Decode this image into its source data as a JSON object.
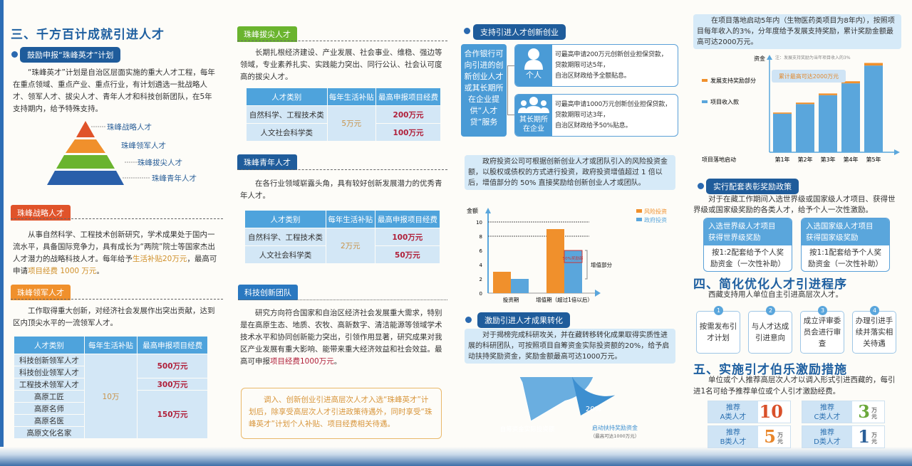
{
  "col1": {
    "title": "三、千方百计成就引进人才",
    "pill": "鼓励申报“珠峰英才”计划",
    "intro": "“珠峰英才”计划是自治区层面实施的重大人才工程，每年在重点领域、重点产业、重点行业，有计划遴选一批战略人才、领军人才、拔尖人才、青年人才和科技创新团队，在5年支持期内，给予特殊支持。",
    "pyramid": [
      "珠峰战略人才",
      "珠峰领军人才",
      "珠峰拔尖人才",
      "珠峰青年人才"
    ],
    "strategic": {
      "tag": "珠峰战略人才",
      "text": "从事自然科学、工程技术创新研究，学术成果处于国内一流水平，具备国际竞争力，具有成长为“两院”院士等国家杰出人才潜力的战略科技人才。每年给予",
      "hl1": "生活补贴20万元",
      "mid": "，最高可申请",
      "hl2": "项目经费 1000 万元",
      "end": "。"
    },
    "leading": {
      "tag": "珠峰领军人才",
      "text": "工作取得重大创新，对经济社会发展作出突出贡献，达到区内顶尖水平的一流领军人才。",
      "headers": [
        "人才类别",
        "每年生活补贴",
        "最高申报项目经费"
      ],
      "rows": [
        "科技创新领军人才",
        "科技创业领军人才",
        "工程技术领军人才",
        "高原工匠",
        "高原名师",
        "高原名医",
        "高原文化名家"
      ],
      "subsidy": "10万",
      "funds": [
        "500万元",
        "300万元",
        "150万元"
      ]
    }
  },
  "col2": {
    "top": {
      "tag": "珠峰拔尖人才",
      "text": "长期扎根经济建设、产业发展、社会事业、维稳、强边等领域，专业素养扎实、实践能力突出、同行公认、社会认可度高的拔尖人才。",
      "headers": [
        "人才类别",
        "每年生活补贴",
        "最高申报项目经费"
      ],
      "rows": [
        "自然科学、工程技术类",
        "人文社会科学类"
      ],
      "subsidy": "5万元",
      "funds": [
        "200万元",
        "100万元"
      ]
    },
    "youth": {
      "tag": "珠峰青年人才",
      "text": "在各行业领域崭露头角，具有较好创新发展潜力的优秀青年人才。",
      "headers": [
        "人才类别",
        "每年生活补贴",
        "最高申报项目经费"
      ],
      "rows": [
        "自然科学、工程技术类",
        "人文社会科学类"
      ],
      "subsidy": "2万元",
      "funds": [
        "100万元",
        "50万元"
      ]
    },
    "team": {
      "tag": "科技创新团队",
      "text": "研究方向符合国家和自治区经济社会发展重大需求，特别是在高原生态、地质、农牧、高新数字、清洁能源等领域学术技术水平和协同创新能力突出，引领作用显著，研究成果对我区产业发展有重大影响、能带来重大经济效益和社会效益。最高可申报",
      "hl": "项目经费1000万元",
      "end": "。"
    },
    "note": "调入、创新创业引进高层次人才入选“珠峰英才”计划后，除享受高层次人才引进政策待遇外，同时享受“珠峰英才”计划个人补贴、项目经费相关待遇。"
  },
  "col3": {
    "pill1": "支持引进人才创新创业",
    "loan_box": "合作银行可向引进的创新创业人才或其长期所在企业提供“人才贷”服务",
    "cards": [
      {
        "who": "个人",
        "lines": [
          "可最高申请200万元创新创业担保贷款，",
          "贷款期限可达5年，",
          "自治区财政给予全额贴息。"
        ]
      },
      {
        "who": "其长期所在企业",
        "lines": [
          "可最高申请1000万元创新创业担保贷款，",
          "贷款期限可达3年，",
          "自治区财政给予50%贴息。"
        ]
      }
    ],
    "invest_text": "政府投资公司可根据创新创业人才或团队引入的风险投资金额，以股权或债权的方式进行投资，政府投资增值超过 1 倍以后，增值部分的 50% 直接奖励给创新创业人才或团队。",
    "pill2": "激励引进人才成果转化",
    "transfer_text": "对于揭榜完成科研攻关，并在藏转移转化成果取得实质性进展的科研团队，可按照项目自筹资金实际投资额的20%，给予启动扶持奖励资金，奖励金额最高可达1000万元。"
  },
  "col4": {
    "dev_text": "在项目落地启动5年内（生物医药类项目为8年内），按照项目每年收入的3%，分年度给予发展支持奖励，累计奖励金额最高可达2000万元。",
    "pill3": "实行配套表彰奖励政策",
    "award_text": "对于在藏工作期间入选世界级或国家级人才项目、获得世界级或国家级奖励的各类人才，给予个人一次性激励。",
    "award_cards": [
      {
        "items": [
          "入选世界级人才项目",
          "获得世界级奖励"
        ],
        "desc": "按1:2配套给予个人奖励资金（一次性补助）"
      },
      {
        "items": [
          "入选国家级人才项目",
          "获得国家级奖励"
        ],
        "desc": "按1:1配套给予个人奖励资金（一次性补助）"
      }
    ],
    "h4": "四、简化优化人才引进程序",
    "h4_sub": "西藏支持用人单位自主引进高层次人才。",
    "steps": [
      {
        "n": "1",
        "t": "按需发布引才计划"
      },
      {
        "n": "2",
        "t": "与人才达成引进意向"
      },
      {
        "n": "3",
        "t": "成立评审委员会进行审查"
      },
      {
        "n": "4",
        "t": "办理引进手续并落实相关待遇"
      }
    ],
    "h5": "五、实施引才伯乐激励措施",
    "h5_text": "单位或个人推荐高层次人才以调入形式引进西藏的，每引进1名可给予推荐单位或个人引才激励经费。",
    "unit": "万元",
    "rewards": [
      {
        "label1": "推荐",
        "label2": "A类人才",
        "value": "10",
        "color": "#d9502a"
      },
      {
        "label1": "推荐",
        "label2": "C类人才",
        "value": "3",
        "color": "#6aa83a"
      },
      {
        "label1": "推荐",
        "label2": "B类人才",
        "value": "5",
        "color": "#e8862a"
      },
      {
        "label1": "推荐",
        "label2": "D类人才",
        "value": "1",
        "color": "#2a5f98"
      }
    ]
  },
  "colors": {
    "accent": "#1f5c9b",
    "table_header": "#4ea3dc",
    "orange": "#f0902c",
    "blue": "#5aa6dc",
    "red_value": "#b0203a"
  },
  "chart_data": [
    {
      "type": "bar",
      "ylabel": "金额",
      "categories": [
        "投资期",
        "增值期（超过1倍以后）"
      ],
      "ylim": [
        0,
        10
      ],
      "yticks": [
        "0",
        "2",
        "4",
        "6",
        "8",
        "10"
      ],
      "grid": "dashed at 8 and 10",
      "series": [
        {
          "name": "风险投资",
          "color": "#f0902c",
          "values": [
            3,
            9
          ]
        },
        {
          "name": "政府投资",
          "color": "#5aa6dc",
          "values": [
            2,
            6
          ]
        }
      ],
      "annotations": [
        "50%奖励部",
        "增值部分"
      ],
      "legend": "top-right"
    },
    {
      "type": "bar",
      "stacked": true,
      "ylabel": "资金",
      "note": "注：发展支持奖励为当年项目收入的3%",
      "baseline_label": "项目落地启动",
      "categories": [
        "第1年",
        "第2年",
        "第3年",
        "第4年",
        "第5年"
      ],
      "series": [
        {
          "name": "项目收入款",
          "color": "#5aa6dc",
          "values": [
            52,
            65,
            77,
            93,
            117
          ]
        },
        {
          "name": "发展支持奖励部分",
          "color": "#f0902c",
          "values": [
            1.6,
            2,
            2.3,
            2.8,
            3.5
          ]
        }
      ],
      "callout": "累计最高可达2000万元",
      "legend": "left"
    },
    {
      "type": "pie",
      "values": [
        80,
        20
      ],
      "labels": [
        "自筹资金实际投资额",
        "启动扶持奖励资金"
      ],
      "value_label": "20%",
      "sub_label": "（最高可达1000万元）"
    }
  ]
}
